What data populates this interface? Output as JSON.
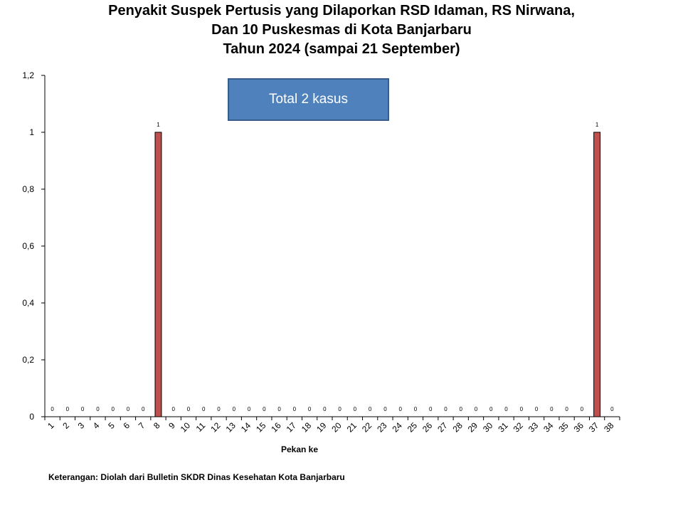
{
  "title_lines": [
    "Penyakit Suspek Pertusis yang Dilaporkan RSD Idaman, RS Nirwana,",
    "Dan 10 Puskesmas di Kota Banjarbaru",
    "Tahun 2024 (sampai 21 September)"
  ],
  "annotation_box": "Total 2 kasus",
  "footnote": "Keterangan: Diolah dari Bulletin SKDR Dinas Kesehatan Kota Banjarbaru",
  "colors": {
    "bar_fill": "#c0504d",
    "bar_stroke": "#000000",
    "box_fill": "#4f81bd",
    "box_border": "#385d8a"
  },
  "chart_data": {
    "type": "bar",
    "title": "Penyakit Suspek Pertusis yang Dilaporkan RSD Idaman, RS Nirwana, Dan 10 Puskesmas di Kota Banjarbaru Tahun 2024 (sampai 21 September)",
    "xlabel": "Pekan ke",
    "ylabel": "",
    "categories": [
      "1",
      "2",
      "3",
      "4",
      "5",
      "6",
      "7",
      "8",
      "9",
      "10",
      "11",
      "12",
      "13",
      "14",
      "15",
      "16",
      "17",
      "18",
      "19",
      "20",
      "21",
      "22",
      "23",
      "24",
      "25",
      "26",
      "27",
      "28",
      "29",
      "30",
      "31",
      "32",
      "33",
      "34",
      "35",
      "36",
      "37",
      "38"
    ],
    "values": [
      0,
      0,
      0,
      0,
      0,
      0,
      0,
      1,
      0,
      0,
      0,
      0,
      0,
      0,
      0,
      0,
      0,
      0,
      0,
      0,
      0,
      0,
      0,
      0,
      0,
      0,
      0,
      0,
      0,
      0,
      0,
      0,
      0,
      0,
      0,
      0,
      1,
      0
    ],
    "ylim": [
      0,
      1.2
    ],
    "yticks": [
      "0",
      "0,2",
      "0,4",
      "0,6",
      "0,8",
      "1",
      "1,2"
    ],
    "ytick_values": [
      0,
      0.2,
      0.4,
      0.6,
      0.8,
      1,
      1.2
    ],
    "data_labels": true,
    "grid": false,
    "legend": "none"
  }
}
